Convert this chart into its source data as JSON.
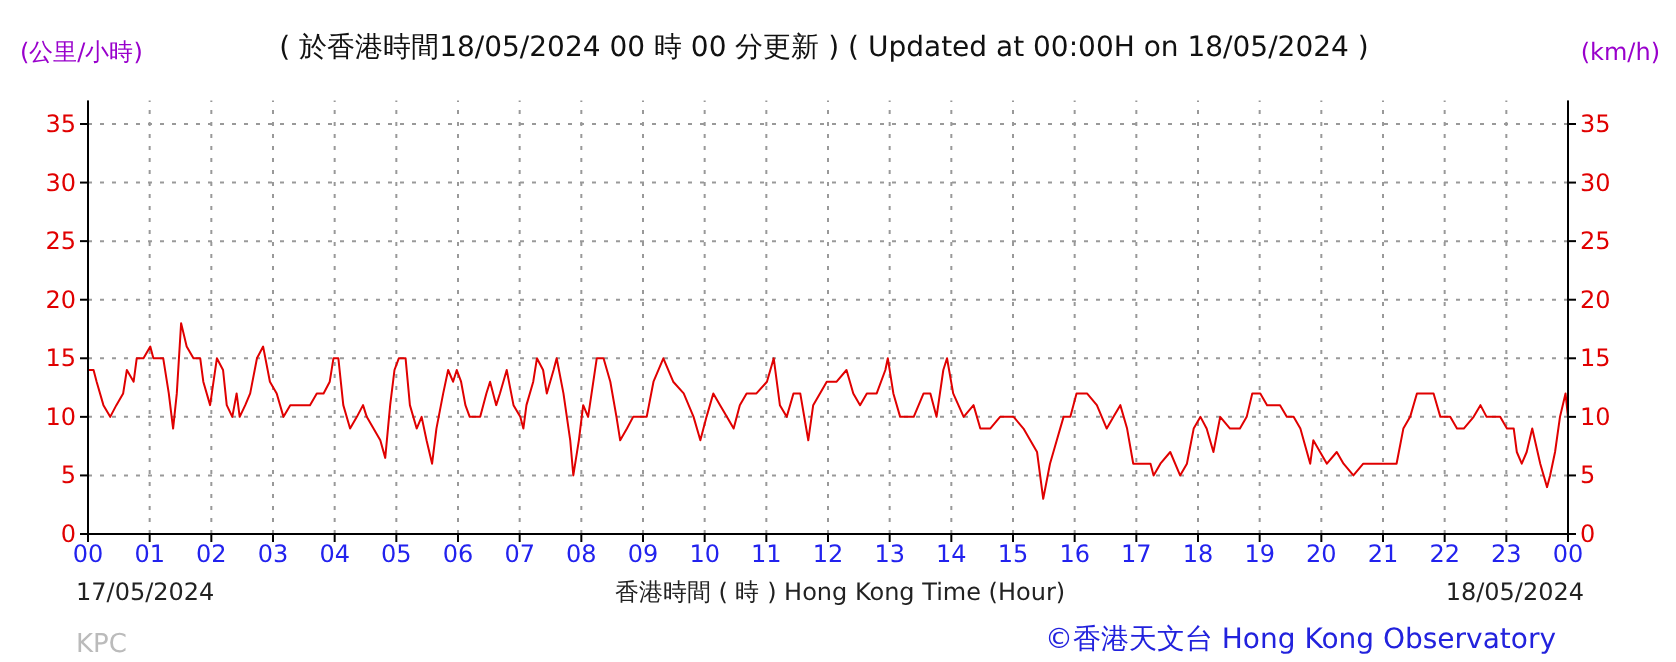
{
  "chart_data": {
    "type": "line",
    "title": "( 於香港時間18/05/2024 00 時 00 分更新 ) ( Updated at 00:00H on 18/05/2024 )",
    "xlabel": "香港時間 ( 時 ) Hong Kong Time (Hour)",
    "ylabel": "(公里/小時)",
    "y2label": "(km/h)",
    "annotations": [
      "17/05/2024",
      "18/05/2024",
      "KPC",
      "©香港天文台 Hong Kong Observatory"
    ],
    "xlim": [
      0,
      24
    ],
    "xticks": [
      {
        "value": 0,
        "label": "00"
      },
      {
        "value": 1,
        "label": "01"
      },
      {
        "value": 2,
        "label": "02"
      },
      {
        "value": 3,
        "label": "03"
      },
      {
        "value": 4,
        "label": "04"
      },
      {
        "value": 5,
        "label": "05"
      },
      {
        "value": 6,
        "label": "06"
      },
      {
        "value": 7,
        "label": "07"
      },
      {
        "value": 8,
        "label": "08"
      },
      {
        "value": 9,
        "label": "09"
      },
      {
        "value": 10,
        "label": "10"
      },
      {
        "value": 11,
        "label": "11"
      },
      {
        "value": 12,
        "label": "12"
      },
      {
        "value": 13,
        "label": "13"
      },
      {
        "value": 14,
        "label": "14"
      },
      {
        "value": 15,
        "label": "15"
      },
      {
        "value": 16,
        "label": "16"
      },
      {
        "value": 17,
        "label": "17"
      },
      {
        "value": 18,
        "label": "18"
      },
      {
        "value": 19,
        "label": "19"
      },
      {
        "value": 20,
        "label": "20"
      },
      {
        "value": 21,
        "label": "21"
      },
      {
        "value": 22,
        "label": "22"
      },
      {
        "value": 23,
        "label": "23"
      },
      {
        "value": 24,
        "label": "00"
      }
    ],
    "ylim": [
      0,
      37
    ],
    "yticks": [
      0,
      5,
      10,
      15,
      20,
      25,
      30,
      35
    ],
    "y2lim": [
      0,
      37
    ],
    "y2ticks": [
      0,
      5,
      10,
      15,
      20,
      25,
      30,
      35
    ],
    "grid": true,
    "line_style": "solid",
    "series": [
      {
        "color": "#e00000",
        "x": [
          0,
          0.09,
          0.14,
          0.25,
          0.36,
          0.46,
          0.57,
          0.63,
          0.74,
          0.79,
          0.9,
          1.01,
          1.06,
          1.22,
          1.31,
          1.38,
          1.44,
          1.51,
          1.6,
          1.71,
          1.82,
          1.87,
          1.98,
          2.09,
          2.19,
          2.25,
          2.34,
          2.41,
          2.46,
          2.55,
          2.63,
          2.74,
          2.84,
          2.95,
          3.06,
          3.17,
          3.28,
          3.44,
          3.6,
          3.71,
          3.82,
          3.92,
          3.98,
          4.06,
          4.14,
          4.25,
          4.36,
          4.46,
          4.52,
          4.63,
          4.74,
          4.82,
          4.9,
          4.97,
          5.04,
          5.15,
          5.22,
          5.33,
          5.41,
          5.49,
          5.58,
          5.65,
          5.76,
          5.84,
          5.92,
          5.98,
          6.05,
          6.12,
          6.19,
          6.36,
          6.46,
          6.52,
          6.62,
          6.68,
          6.79,
          6.9,
          7.01,
          7.06,
          7.11,
          7.22,
          7.28,
          7.38,
          7.44,
          7.55,
          7.6,
          7.71,
          7.82,
          7.87,
          7.96,
          8.03,
          8.11,
          8.25,
          8.36,
          8.47,
          8.57,
          8.63,
          8.74,
          8.84,
          8.95,
          9.06,
          9.17,
          9.33,
          9.49,
          9.66,
          9.82,
          9.93,
          10.03,
          10.14,
          10.25,
          10.36,
          10.47,
          10.57,
          10.68,
          10.84,
          11.01,
          11.12,
          11.22,
          11.33,
          11.44,
          11.55,
          11.68,
          11.76,
          11.87,
          11.98,
          12.14,
          12.3,
          12.41,
          12.52,
          12.63,
          12.79,
          12.93,
          12.97,
          13.06,
          13.17,
          13.39,
          13.55,
          13.66,
          13.76,
          13.87,
          13.93,
          14.03,
          14.2,
          14.36,
          14.47,
          14.63,
          14.79,
          15.01,
          15.17,
          15.39,
          15.49,
          15.6,
          15.71,
          15.82,
          15.93,
          16.03,
          16.2,
          16.36,
          16.52,
          16.63,
          16.74,
          16.85,
          16.95,
          17.12,
          17.23,
          17.28,
          17.39,
          17.55,
          17.71,
          17.82,
          17.93,
          18.04,
          18.14,
          18.25,
          18.36,
          18.52,
          18.68,
          18.79,
          18.88,
          19.01,
          19.12,
          19.33,
          19.44,
          19.55,
          19.66,
          19.82,
          19.87,
          19.98,
          20.09,
          20.25,
          20.36,
          20.52,
          20.68,
          20.9,
          21.06,
          21.22,
          21.33,
          21.44,
          21.55,
          21.66,
          21.82,
          21.93,
          22.09,
          22.2,
          22.31,
          22.47,
          22.58,
          22.68,
          22.79,
          22.9,
          23.01,
          23.12,
          23.17,
          23.25,
          23.33,
          23.42,
          23.55,
          23.66,
          23.71,
          23.79,
          23.87,
          23.96,
          24
        ],
        "values": [
          14,
          14,
          13,
          11,
          10,
          11,
          12,
          14,
          13,
          15,
          15,
          16,
          15,
          15,
          12,
          9,
          12,
          18,
          16,
          15,
          15,
          13,
          11,
          15,
          14,
          11,
          10,
          12,
          10,
          11,
          12,
          15,
          16,
          13,
          12,
          10,
          11,
          11,
          11,
          12,
          12,
          13,
          15,
          15,
          11,
          9,
          10,
          11,
          10,
          9,
          8,
          6.5,
          11,
          14,
          15,
          15,
          11,
          9,
          10,
          8,
          6,
          9,
          12,
          14,
          13,
          14,
          13,
          11,
          10,
          10,
          12,
          13,
          11,
          12,
          14,
          11,
          10,
          9,
          11,
          13,
          15,
          14,
          12,
          14,
          15,
          12,
          8,
          5,
          8,
          11,
          10,
          15,
          15,
          13,
          10,
          8,
          9,
          10,
          10,
          10,
          13,
          15,
          13,
          12,
          10,
          8,
          10,
          12,
          11,
          10,
          9,
          11,
          12,
          12,
          13,
          15,
          11,
          10,
          12,
          12,
          8,
          11,
          12,
          13,
          13,
          14,
          12,
          11,
          12,
          12,
          14,
          15,
          12,
          10,
          10,
          12,
          12,
          10,
          14,
          15,
          12,
          10,
          11,
          9,
          9,
          10,
          10,
          9,
          7,
          3,
          6,
          8,
          10,
          10,
          12,
          12,
          11,
          9,
          10,
          11,
          9,
          6,
          6,
          6,
          5,
          6,
          7,
          5,
          6,
          9,
          10,
          9,
          7,
          10,
          9,
          9,
          10,
          12,
          12,
          11,
          11,
          10,
          10,
          9,
          6,
          8,
          7,
          6,
          7,
          6,
          5,
          6,
          6,
          6,
          6,
          9,
          10,
          12,
          12,
          12,
          10,
          10,
          9,
          9,
          10,
          11,
          10,
          10,
          10,
          9,
          9,
          7,
          6,
          7,
          9,
          6,
          4,
          5,
          7,
          10,
          12,
          10
        ]
      }
    ]
  }
}
